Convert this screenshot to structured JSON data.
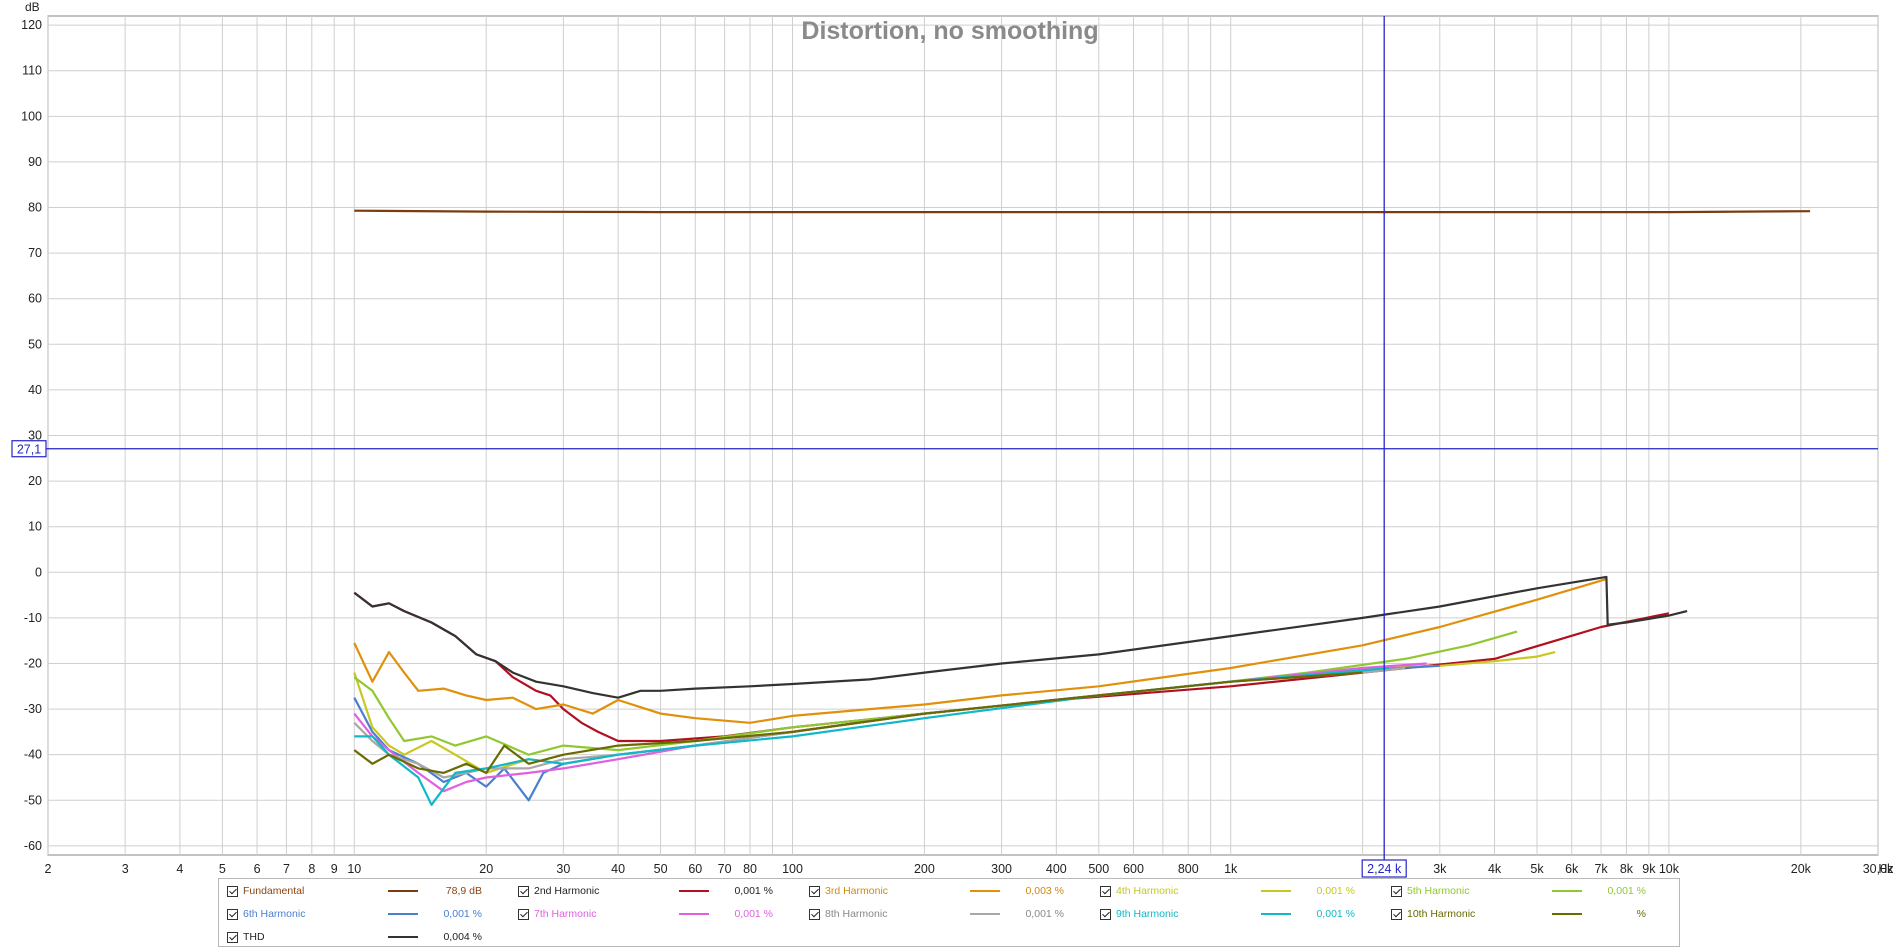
{
  "chart_data": {
    "type": "line",
    "title": "Distortion, no smoothing",
    "ylabel": "dB",
    "xunit": "Hz",
    "xscale": "log",
    "xlim": [
      2,
      30000
    ],
    "ylim": [
      -62,
      122
    ],
    "grid": true,
    "yticks": [
      120,
      110,
      100,
      90,
      80,
      70,
      60,
      50,
      40,
      30,
      20,
      10,
      0,
      -10,
      -20,
      -30,
      -40,
      -50,
      -60
    ],
    "xticks": [
      {
        "v": 2,
        "label": "2"
      },
      {
        "v": 3,
        "label": "3"
      },
      {
        "v": 4,
        "label": "4"
      },
      {
        "v": 5,
        "label": "5"
      },
      {
        "v": 6,
        "label": "6"
      },
      {
        "v": 7,
        "label": "7"
      },
      {
        "v": 8,
        "label": "8"
      },
      {
        "v": 9,
        "label": "9"
      },
      {
        "v": 10,
        "label": "10"
      },
      {
        "v": 20,
        "label": "20"
      },
      {
        "v": 30,
        "label": "30"
      },
      {
        "v": 40,
        "label": "40"
      },
      {
        "v": 50,
        "label": "50"
      },
      {
        "v": 60,
        "label": "60"
      },
      {
        "v": 70,
        "label": "70"
      },
      {
        "v": 80,
        "label": "80"
      },
      {
        "v": 100,
        "label": "100"
      },
      {
        "v": 200,
        "label": "200"
      },
      {
        "v": 300,
        "label": "300"
      },
      {
        "v": 400,
        "label": "400"
      },
      {
        "v": 500,
        "label": "500"
      },
      {
        "v": 600,
        "label": "600"
      },
      {
        "v": 800,
        "label": "800"
      },
      {
        "v": 1000,
        "label": "1k"
      },
      {
        "v": 3000,
        "label": "3k"
      },
      {
        "v": 4000,
        "label": "4k"
      },
      {
        "v": 5000,
        "label": "5k"
      },
      {
        "v": 6000,
        "label": "6k"
      },
      {
        "v": 7000,
        "label": "7k"
      },
      {
        "v": 8000,
        "label": "8k"
      },
      {
        "v": 9000,
        "label": "9k"
      },
      {
        "v": 10000,
        "label": "10k"
      },
      {
        "v": 20000,
        "label": "20k"
      },
      {
        "v": 30000,
        "label": "30,0k"
      }
    ],
    "cursor": {
      "x": 2240,
      "y": 27.1,
      "x_label": "2,24 k",
      "y_label": "27,1"
    },
    "series": [
      {
        "name": "Fundamental",
        "color": "#7a3b10",
        "value": "78,9 dB",
        "label_color": "#8b4513",
        "points": [
          [
            10,
            79.3
          ],
          [
            20,
            79.1
          ],
          [
            50,
            79
          ],
          [
            100,
            79
          ],
          [
            300,
            79
          ],
          [
            1000,
            79
          ],
          [
            3000,
            79
          ],
          [
            10000,
            79
          ],
          [
            21000,
            79.2
          ]
        ]
      },
      {
        "name": "2nd Harmonic",
        "color": "#b01020",
        "value": "0,001 %",
        "label_color": "#222222",
        "points": [
          [
            10,
            -4.5
          ],
          [
            11,
            -7.5
          ],
          [
            12,
            -6.8
          ],
          [
            13,
            -8.5
          ],
          [
            15,
            -11
          ],
          [
            17,
            -14
          ],
          [
            19,
            -18
          ],
          [
            21,
            -19.5
          ],
          [
            23,
            -23
          ],
          [
            26,
            -26
          ],
          [
            28,
            -27
          ],
          [
            30,
            -30
          ],
          [
            33,
            -33
          ],
          [
            36,
            -35
          ],
          [
            40,
            -37
          ],
          [
            50,
            -37
          ],
          [
            70,
            -36
          ],
          [
            100,
            -34
          ],
          [
            200,
            -31
          ],
          [
            400,
            -28
          ],
          [
            1000,
            -25
          ],
          [
            2000,
            -22
          ],
          [
            4000,
            -19
          ],
          [
            7000,
            -12
          ],
          [
            10000,
            -9
          ]
        ]
      },
      {
        "name": "3rd Harmonic",
        "color": "#e0900a",
        "value": "0,003 %",
        "label_color": "#d08a10",
        "points": [
          [
            10,
            -15.5
          ],
          [
            11,
            -24
          ],
          [
            12,
            -17.5
          ],
          [
            13,
            -22
          ],
          [
            14,
            -26
          ],
          [
            16,
            -25.5
          ],
          [
            18,
            -27
          ],
          [
            20,
            -28
          ],
          [
            23,
            -27.5
          ],
          [
            26,
            -30
          ],
          [
            30,
            -29
          ],
          [
            35,
            -31
          ],
          [
            40,
            -28
          ],
          [
            50,
            -31
          ],
          [
            60,
            -32
          ],
          [
            80,
            -33
          ],
          [
            100,
            -31.5
          ],
          [
            150,
            -30
          ],
          [
            200,
            -29
          ],
          [
            300,
            -27
          ],
          [
            500,
            -25
          ],
          [
            1000,
            -21
          ],
          [
            2000,
            -16
          ],
          [
            3000,
            -12
          ],
          [
            5000,
            -6
          ],
          [
            7200,
            -1.5
          ]
        ]
      },
      {
        "name": "4th Harmonic",
        "color": "#c8c820",
        "value": "0,001 %",
        "label_color": "#c8c820",
        "points": [
          [
            10,
            -22
          ],
          [
            11,
            -34
          ],
          [
            12,
            -38
          ],
          [
            13,
            -40
          ],
          [
            15,
            -37
          ],
          [
            17,
            -40
          ],
          [
            20,
            -44
          ],
          [
            25,
            -41
          ],
          [
            30,
            -42
          ],
          [
            40,
            -40
          ],
          [
            60,
            -38
          ],
          [
            100,
            -35
          ],
          [
            200,
            -31
          ],
          [
            500,
            -27
          ],
          [
            1000,
            -24
          ],
          [
            2000,
            -21
          ],
          [
            3000,
            -20.5
          ],
          [
            4000,
            -19.5
          ],
          [
            5000,
            -18.5
          ],
          [
            5500,
            -17.5
          ]
        ]
      },
      {
        "name": "5th Harmonic",
        "color": "#90c830",
        "value": "0,001 %",
        "label_color": "#90c830",
        "points": [
          [
            10,
            -23
          ],
          [
            11,
            -26
          ],
          [
            12,
            -32
          ],
          [
            13,
            -37
          ],
          [
            15,
            -36
          ],
          [
            17,
            -38
          ],
          [
            20,
            -36
          ],
          [
            25,
            -40
          ],
          [
            30,
            -38
          ],
          [
            40,
            -39
          ],
          [
            60,
            -37
          ],
          [
            100,
            -34
          ],
          [
            200,
            -31
          ],
          [
            400,
            -28
          ],
          [
            800,
            -25
          ],
          [
            1500,
            -22
          ],
          [
            2500,
            -19
          ],
          [
            3500,
            -16
          ],
          [
            4500,
            -13
          ]
        ]
      },
      {
        "name": "6th Harmonic",
        "color": "#4a7fd0",
        "value": "0,001 %",
        "label_color": "#4a7fd0",
        "points": [
          [
            10,
            -27.5
          ],
          [
            11,
            -35
          ],
          [
            12,
            -39
          ],
          [
            14,
            -42
          ],
          [
            16,
            -46
          ],
          [
            18,
            -44
          ],
          [
            20,
            -47
          ],
          [
            22,
            -43
          ],
          [
            25,
            -50
          ],
          [
            27,
            -44
          ],
          [
            30,
            -42
          ],
          [
            40,
            -40
          ],
          [
            60,
            -38
          ],
          [
            100,
            -35
          ],
          [
            200,
            -31
          ],
          [
            500,
            -27
          ],
          [
            1000,
            -24
          ],
          [
            2000,
            -21.5
          ],
          [
            3000,
            -20.5
          ]
        ]
      },
      {
        "name": "7th Harmonic",
        "color": "#e060e0",
        "value": "0,001 %",
        "label_color": "#e060e0",
        "points": [
          [
            10,
            -31
          ],
          [
            11,
            -36
          ],
          [
            12,
            -39
          ],
          [
            14,
            -44
          ],
          [
            16,
            -48
          ],
          [
            18,
            -46
          ],
          [
            20,
            -45
          ],
          [
            25,
            -44
          ],
          [
            30,
            -43
          ],
          [
            40,
            -41
          ],
          [
            60,
            -38
          ],
          [
            100,
            -35
          ],
          [
            200,
            -31
          ],
          [
            500,
            -27
          ],
          [
            1000,
            -24
          ],
          [
            2000,
            -21
          ],
          [
            2800,
            -20
          ]
        ]
      },
      {
        "name": "8th Harmonic",
        "color": "#a8a8a8",
        "value": "0,001 %",
        "label_color": "#888888",
        "points": [
          [
            10,
            -33
          ],
          [
            11,
            -37
          ],
          [
            12,
            -40
          ],
          [
            14,
            -42
          ],
          [
            16,
            -45
          ],
          [
            18,
            -44
          ],
          [
            20,
            -43
          ],
          [
            25,
            -43
          ],
          [
            30,
            -41
          ],
          [
            40,
            -40
          ],
          [
            60,
            -38
          ],
          [
            100,
            -35
          ],
          [
            200,
            -31
          ],
          [
            500,
            -27
          ],
          [
            1000,
            -24
          ],
          [
            2000,
            -22
          ],
          [
            2500,
            -21
          ]
        ]
      },
      {
        "name": "9th Harmonic",
        "color": "#10b8c8",
        "value": "0,001 %",
        "label_color": "#10b8c8",
        "points": [
          [
            10,
            -36
          ],
          [
            11,
            -36
          ],
          [
            12,
            -40
          ],
          [
            14,
            -45
          ],
          [
            15,
            -51
          ],
          [
            17,
            -44
          ],
          [
            20,
            -43
          ],
          [
            25,
            -41
          ],
          [
            30,
            -42
          ],
          [
            40,
            -40
          ],
          [
            60,
            -38
          ],
          [
            100,
            -36
          ],
          [
            200,
            -32
          ],
          [
            500,
            -27
          ],
          [
            1000,
            -24
          ],
          [
            2000,
            -21.5
          ],
          [
            2300,
            -21
          ]
        ]
      },
      {
        "name": "10th Harmonic",
        "color": "#6a6a00",
        "value": "%",
        "label_color": "#6a6a00",
        "points": [
          [
            10,
            -39
          ],
          [
            11,
            -42
          ],
          [
            12,
            -40
          ],
          [
            14,
            -43
          ],
          [
            16,
            -44
          ],
          [
            18,
            -42
          ],
          [
            20,
            -44
          ],
          [
            22,
            -38
          ],
          [
            25,
            -42
          ],
          [
            30,
            -40
          ],
          [
            40,
            -38
          ],
          [
            60,
            -37
          ],
          [
            100,
            -35
          ],
          [
            200,
            -31
          ],
          [
            500,
            -27
          ],
          [
            1000,
            -24
          ],
          [
            2000,
            -22
          ]
        ]
      },
      {
        "name": "THD",
        "color": "#333333",
        "value": "0,004 %",
        "label_color": "#222222",
        "points": [
          [
            10,
            -4.5
          ],
          [
            11,
            -7.5
          ],
          [
            12,
            -6.8
          ],
          [
            13,
            -8.5
          ],
          [
            15,
            -11
          ],
          [
            17,
            -14
          ],
          [
            19,
            -18
          ],
          [
            21,
            -19.5
          ],
          [
            23,
            -22
          ],
          [
            26,
            -24
          ],
          [
            30,
            -25
          ],
          [
            35,
            -26.5
          ],
          [
            40,
            -27.5
          ],
          [
            45,
            -26
          ],
          [
            50,
            -26
          ],
          [
            60,
            -25.5
          ],
          [
            80,
            -25
          ],
          [
            100,
            -24.5
          ],
          [
            150,
            -23.5
          ],
          [
            200,
            -22
          ],
          [
            300,
            -20
          ],
          [
            500,
            -18
          ],
          [
            1000,
            -14
          ],
          [
            2000,
            -10
          ],
          [
            3000,
            -7.5
          ],
          [
            5000,
            -3.5
          ],
          [
            7200,
            -1
          ],
          [
            7250,
            -11.5
          ],
          [
            8000,
            -11
          ],
          [
            10000,
            -9.5
          ],
          [
            11000,
            -8.5
          ]
        ]
      }
    ]
  }
}
